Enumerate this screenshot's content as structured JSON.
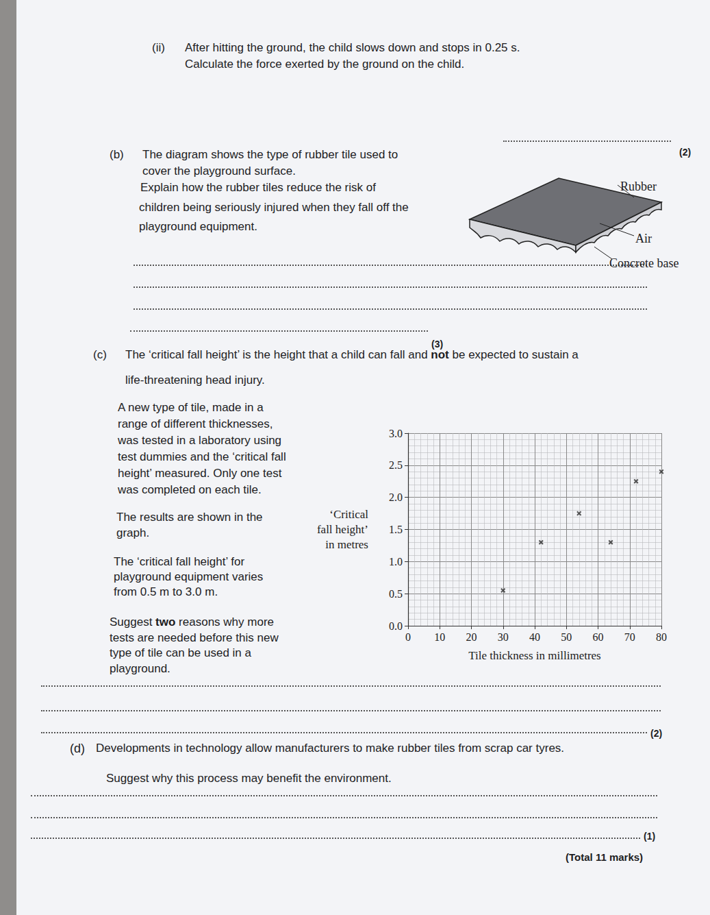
{
  "parts": {
    "a_ii": {
      "label": "(ii)",
      "lines": [
        "After hitting the ground, the child slows down and stops in 0.25 s.",
        "Calculate the force exerted by the ground on the child."
      ],
      "marks": "(2)"
    },
    "b": {
      "label": "(b)",
      "lines": [
        "The diagram shows the type of rubber tile used to",
        "cover the playground surface.",
        "Explain how the rubber tiles reduce the risk of",
        "children being seriously injured when they fall off the",
        "playground equipment."
      ],
      "diagram_labels": [
        "Rubber",
        "Air",
        "Concrete base"
      ],
      "marks": "(3)"
    },
    "c": {
      "label": "(c)",
      "intro": [
        [
          "The ‘critical fall height’ is the height that a child can fall and ",
          {
            "bold": "not"
          },
          " be expected to sustain a"
        ],
        "life-threatening head injury."
      ],
      "paragraphs": [
        [
          "A new type of tile, made in a",
          "range of different thicknesses,",
          "was tested in a laboratory using",
          "test dummies and the ‘critical fall",
          "height’ measured. Only one test",
          "was completed on each tile."
        ],
        [
          "The results are shown in the",
          "graph."
        ],
        [
          "The ‘critical fall height’ for",
          "playground equipment varies",
          "from 0.5 m to 3.0 m."
        ],
        [
          [
            "Suggest ",
            {
              "bold": "two"
            },
            " reasons why more"
          ],
          "tests are needed before this new",
          "type of tile can be used in a",
          "playground."
        ]
      ],
      "marks": "(2)"
    },
    "d": {
      "label": "(d)",
      "lines": [
        "Developments in technology allow manufacturers to make rubber tiles from scrap car tyres.",
        "Suggest why this process may benefit the environment."
      ],
      "marks": "(1)"
    }
  },
  "total": "(Total 11 marks)",
  "chart_data": {
    "type": "scatter",
    "x_label": "Tile thickness in millimetres",
    "y_label": [
      "‘Critical",
      "fall height’",
      "in metres"
    ],
    "x": [
      30,
      42,
      54,
      64,
      72,
      80
    ],
    "values": [
      0.55,
      1.3,
      1.75,
      1.3,
      2.25,
      2.4
    ],
    "marker": "cross",
    "color": "#2b2b2b",
    "xlim": [
      0,
      80
    ],
    "xticks": [
      0,
      10,
      20,
      30,
      40,
      50,
      60,
      70,
      80
    ],
    "ylim": [
      0,
      3
    ],
    "yticks": [
      {
        "value": 0,
        "label": "0.0"
      },
      0.5,
      {
        "value": 1,
        "label": "1.0"
      },
      1.5,
      {
        "value": 2,
        "label": "2.0"
      },
      2.5,
      {
        "value": 3,
        "label": "3.0"
      }
    ],
    "grid": true
  }
}
